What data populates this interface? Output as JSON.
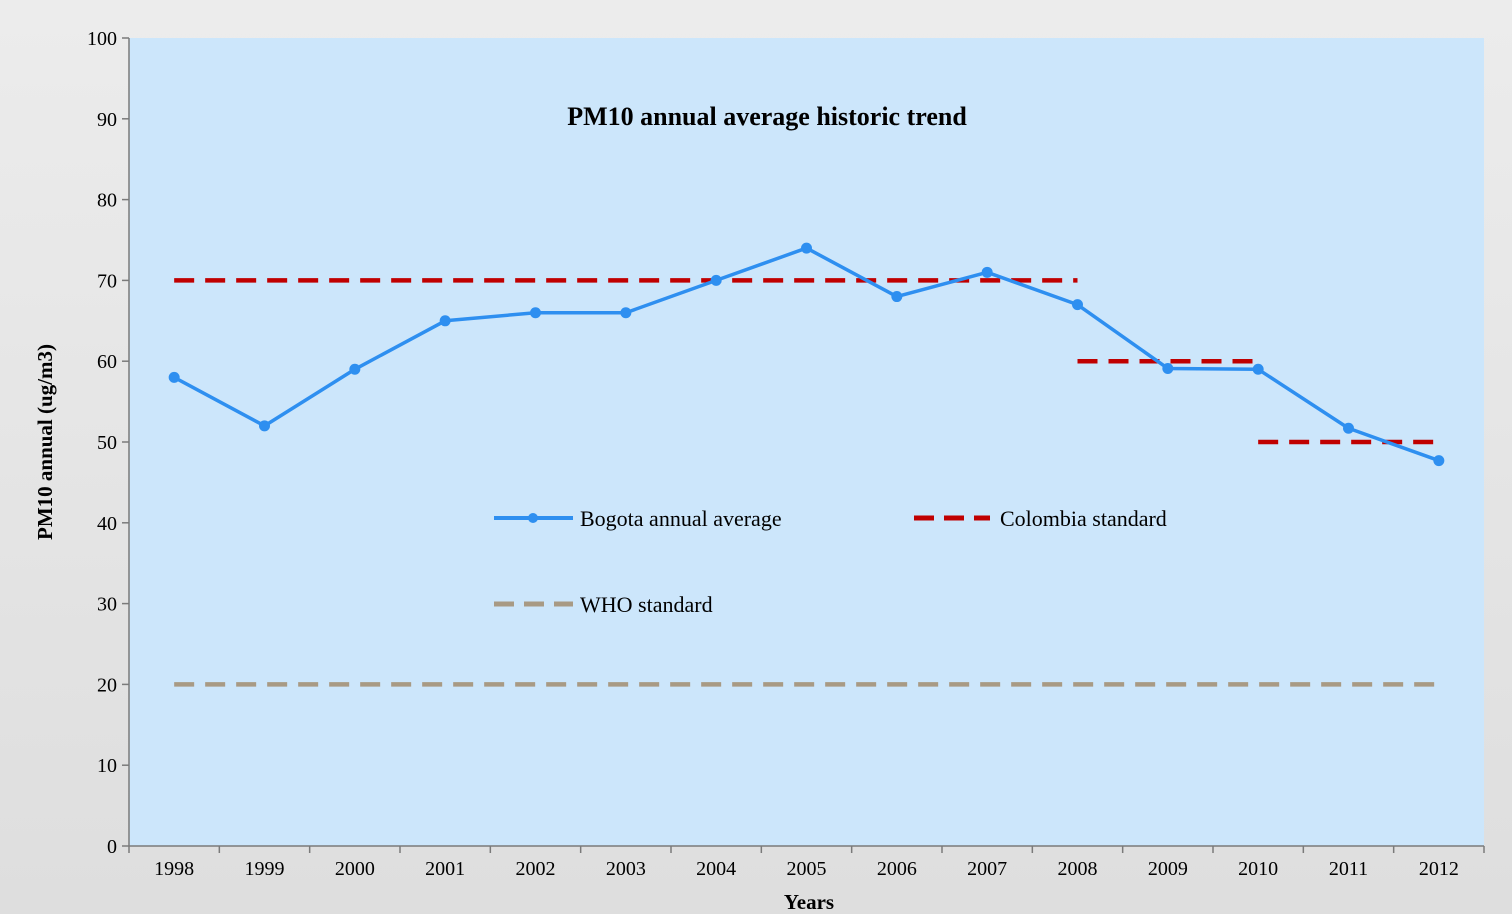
{
  "chart_data": {
    "type": "line",
    "title": "PM10 annual average historic trend",
    "xlabel": "Years",
    "ylabel": "PM10 annual (ug/m3)",
    "ylim": [
      0,
      100
    ],
    "yticks": [
      0,
      10,
      20,
      30,
      40,
      50,
      60,
      70,
      80,
      90,
      100
    ],
    "grid": false,
    "legend_position": "center",
    "plot_background": "#cce6fb",
    "categories": [
      "1998",
      "1999",
      "2000",
      "2001",
      "2002",
      "2003",
      "2004",
      "2005",
      "2006",
      "2007",
      "2008",
      "2009",
      "2010",
      "2011",
      "2012"
    ],
    "series": [
      {
        "name": "Bogota annual average",
        "style": "solid-markers",
        "color": "#2e8ff0",
        "values": [
          58,
          52,
          59,
          65,
          66,
          66,
          70,
          74,
          68,
          71,
          67,
          59.1,
          59,
          51.7,
          47.7
        ]
      },
      {
        "name": "Colombia standard",
        "style": "dashed",
        "color": "#c00000",
        "values": [
          70,
          70,
          70,
          70,
          70,
          70,
          70,
          70,
          70,
          70,
          70,
          null,
          null,
          null,
          null
        ],
        "extra_segments": [
          {
            "from": "2008",
            "to": "2010",
            "value": 60
          },
          {
            "from": "2010",
            "to": "2012",
            "value": 50
          }
        ]
      },
      {
        "name": "WHO standard",
        "style": "dashed",
        "color": "#a89a84",
        "values": [
          20,
          20,
          20,
          20,
          20,
          20,
          20,
          20,
          20,
          20,
          20,
          20,
          20,
          20,
          20
        ]
      }
    ]
  }
}
